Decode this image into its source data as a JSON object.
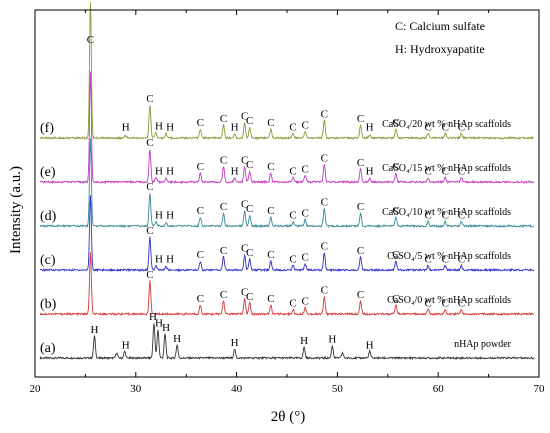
{
  "chart_data": {
    "type": "line",
    "xlabel": "2θ (°)",
    "ylabel": "Intensity (a.u.)",
    "xlim": [
      20,
      70
    ],
    "xticks": [
      20,
      30,
      40,
      50,
      60,
      70
    ],
    "legend_text": [
      "C: Calcium sulfate",
      "H: Hydroxyapatite"
    ],
    "legend_placement": "top-right",
    "grid": false,
    "top_label": "C",
    "series": [
      {
        "id": "a",
        "tag": "(a)",
        "name": "nHAp powder",
        "color": "#333333",
        "baseline": 0.0,
        "peaks": [
          [
            25.9,
            0.05
          ],
          [
            28.1,
            0.012
          ],
          [
            28.9,
            0.015
          ],
          [
            31.8,
            0.08
          ],
          [
            32.2,
            0.065
          ],
          [
            32.9,
            0.055
          ],
          [
            34.1,
            0.03
          ],
          [
            39.8,
            0.02
          ],
          [
            46.7,
            0.025
          ],
          [
            49.5,
            0.028
          ],
          [
            50.5,
            0.012
          ],
          [
            53.2,
            0.015
          ]
        ],
        "labels": [
          {
            "t": "H",
            "x": 25.9
          },
          {
            "t": "H",
            "x": 29.0
          },
          {
            "t": "H",
            "x": 31.7
          },
          {
            "t": "H",
            "x": 32.3
          },
          {
            "t": "H",
            "x": 33.0
          },
          {
            "t": "H",
            "x": 34.1
          },
          {
            "t": "H",
            "x": 39.8
          },
          {
            "t": "H",
            "x": 46.7
          },
          {
            "t": "H",
            "x": 49.5
          },
          {
            "t": "H",
            "x": 53.2
          }
        ]
      },
      {
        "id": "b",
        "tag": "(b)",
        "name": "CaSO₄/0 wt % nHAp scaffolds",
        "color": "#d43a3a",
        "baseline": 0.1,
        "peaks": [
          [
            25.5,
            0.14
          ],
          [
            31.4,
            0.075
          ],
          [
            36.4,
            0.02
          ],
          [
            38.7,
            0.03
          ],
          [
            40.8,
            0.035
          ],
          [
            41.3,
            0.025
          ],
          [
            43.4,
            0.02
          ],
          [
            45.6,
            0.01
          ],
          [
            46.8,
            0.015
          ],
          [
            48.7,
            0.04
          ],
          [
            52.3,
            0.03
          ],
          [
            55.8,
            0.02
          ],
          [
            59.0,
            0.01
          ],
          [
            60.7,
            0.01
          ],
          [
            62.3,
            0.01
          ]
        ],
        "labels": [
          {
            "t": "C",
            "x": 31.4
          },
          {
            "t": "C",
            "x": 36.4
          },
          {
            "t": "C",
            "x": 38.7
          },
          {
            "t": "C",
            "x": 40.8
          },
          {
            "t": "C",
            "x": 41.3
          },
          {
            "t": "C",
            "x": 43.4
          },
          {
            "t": "C",
            "x": 45.6
          },
          {
            "t": "C",
            "x": 46.8
          },
          {
            "t": "C",
            "x": 48.7
          },
          {
            "t": "C",
            "x": 52.3
          },
          {
            "t": "C",
            "x": 55.8
          },
          {
            "t": "C",
            "x": 59.0
          },
          {
            "t": "C",
            "x": 60.7
          },
          {
            "t": "C",
            "x": 62.3
          }
        ]
      },
      {
        "id": "c",
        "tag": "(c)",
        "name": "CaSO₄/5 wt % nHAp scaffolds",
        "color": "#3030c8",
        "baseline": 0.2,
        "peaks": [
          [
            25.5,
            0.17
          ],
          [
            31.4,
            0.075
          ],
          [
            32.0,
            0.01
          ],
          [
            33.0,
            0.008
          ],
          [
            36.4,
            0.02
          ],
          [
            38.7,
            0.03
          ],
          [
            40.8,
            0.035
          ],
          [
            41.3,
            0.025
          ],
          [
            43.4,
            0.02
          ],
          [
            45.6,
            0.01
          ],
          [
            46.8,
            0.015
          ],
          [
            48.7,
            0.04
          ],
          [
            52.3,
            0.03
          ],
          [
            55.8,
            0.02
          ],
          [
            59.0,
            0.01
          ],
          [
            60.7,
            0.01
          ],
          [
            62.3,
            0.01
          ]
        ],
        "labels": [
          {
            "t": "C",
            "x": 31.4
          },
          {
            "t": "H",
            "x": 32.3
          },
          {
            "t": "H",
            "x": 33.4
          },
          {
            "t": "C",
            "x": 36.4
          },
          {
            "t": "C",
            "x": 38.7
          },
          {
            "t": "C",
            "x": 40.8
          },
          {
            "t": "C",
            "x": 41.3
          },
          {
            "t": "C",
            "x": 43.4
          },
          {
            "t": "C",
            "x": 45.6
          },
          {
            "t": "C",
            "x": 46.8
          },
          {
            "t": "C",
            "x": 48.7
          },
          {
            "t": "C",
            "x": 52.3
          },
          {
            "t": "C",
            "x": 55.8
          },
          {
            "t": "C",
            "x": 59.0
          },
          {
            "t": "C",
            "x": 60.7
          },
          {
            "t": "C",
            "x": 62.3
          }
        ]
      },
      {
        "id": "d",
        "tag": "(d)",
        "name": "CaSO₄/10 wt % nHAp scaffolds",
        "color": "#3a8a9a",
        "baseline": 0.3,
        "peaks": [
          [
            25.5,
            0.2
          ],
          [
            31.4,
            0.075
          ],
          [
            32.0,
            0.01
          ],
          [
            33.0,
            0.008
          ],
          [
            36.4,
            0.02
          ],
          [
            38.7,
            0.03
          ],
          [
            40.8,
            0.035
          ],
          [
            41.3,
            0.025
          ],
          [
            43.4,
            0.02
          ],
          [
            45.6,
            0.01
          ],
          [
            46.8,
            0.015
          ],
          [
            48.7,
            0.04
          ],
          [
            52.3,
            0.03
          ],
          [
            55.8,
            0.02
          ],
          [
            59.0,
            0.01
          ],
          [
            60.7,
            0.01
          ],
          [
            62.3,
            0.01
          ]
        ],
        "labels": [
          {
            "t": "C",
            "x": 31.4
          },
          {
            "t": "H",
            "x": 32.3
          },
          {
            "t": "H",
            "x": 33.4
          },
          {
            "t": "C",
            "x": 36.4
          },
          {
            "t": "C",
            "x": 38.7
          },
          {
            "t": "C",
            "x": 40.8
          },
          {
            "t": "C",
            "x": 41.3
          },
          {
            "t": "C",
            "x": 43.4
          },
          {
            "t": "C",
            "x": 45.6
          },
          {
            "t": "C",
            "x": 46.8
          },
          {
            "t": "C",
            "x": 48.7
          },
          {
            "t": "C",
            "x": 52.3
          },
          {
            "t": "C",
            "x": 55.8
          },
          {
            "t": "C",
            "x": 59.0
          },
          {
            "t": "C",
            "x": 60.7
          },
          {
            "t": "C",
            "x": 62.3
          }
        ]
      },
      {
        "id": "e",
        "tag": "(e)",
        "name": "CaSO₄/15 wt % nHAp scaffolds",
        "color": "#c03cc0",
        "baseline": 0.4,
        "peaks": [
          [
            25.5,
            0.25
          ],
          [
            31.4,
            0.075
          ],
          [
            32.0,
            0.01
          ],
          [
            33.0,
            0.008
          ],
          [
            36.4,
            0.02
          ],
          [
            38.7,
            0.035
          ],
          [
            39.8,
            0.008
          ],
          [
            40.8,
            0.035
          ],
          [
            41.3,
            0.025
          ],
          [
            43.4,
            0.02
          ],
          [
            45.6,
            0.01
          ],
          [
            46.8,
            0.015
          ],
          [
            48.7,
            0.04
          ],
          [
            52.3,
            0.03
          ],
          [
            53.2,
            0.008
          ],
          [
            55.8,
            0.02
          ],
          [
            59.0,
            0.01
          ],
          [
            60.7,
            0.01
          ],
          [
            62.3,
            0.01
          ]
        ],
        "labels": [
          {
            "t": "C",
            "x": 31.4
          },
          {
            "t": "H",
            "x": 32.3
          },
          {
            "t": "H",
            "x": 33.4
          },
          {
            "t": "C",
            "x": 36.4
          },
          {
            "t": "C",
            "x": 38.7
          },
          {
            "t": "H",
            "x": 39.8
          },
          {
            "t": "C",
            "x": 40.8
          },
          {
            "t": "C",
            "x": 41.3
          },
          {
            "t": "C",
            "x": 43.4
          },
          {
            "t": "C",
            "x": 45.6
          },
          {
            "t": "C",
            "x": 46.8
          },
          {
            "t": "C",
            "x": 48.7
          },
          {
            "t": "C",
            "x": 52.3
          },
          {
            "t": "H",
            "x": 53.2
          },
          {
            "t": "C",
            "x": 55.8
          },
          {
            "t": "C",
            "x": 59.0
          },
          {
            "t": "C",
            "x": 60.7
          },
          {
            "t": "C",
            "x": 62.3
          }
        ]
      },
      {
        "id": "f",
        "tag": "(f)",
        "name": "CaSO₄/20 wt % nHAp scaffolds",
        "color": "#8a9a3a",
        "baseline": 0.5,
        "peaks": [
          [
            25.5,
            0.31
          ],
          [
            29.0,
            0.005
          ],
          [
            31.4,
            0.075
          ],
          [
            32.0,
            0.012
          ],
          [
            33.0,
            0.01
          ],
          [
            36.4,
            0.02
          ],
          [
            38.7,
            0.03
          ],
          [
            39.8,
            0.008
          ],
          [
            40.8,
            0.035
          ],
          [
            41.3,
            0.025
          ],
          [
            43.4,
            0.02
          ],
          [
            45.6,
            0.01
          ],
          [
            46.8,
            0.015
          ],
          [
            48.7,
            0.04
          ],
          [
            52.3,
            0.03
          ],
          [
            53.2,
            0.008
          ],
          [
            55.8,
            0.02
          ],
          [
            59.0,
            0.01
          ],
          [
            60.7,
            0.01
          ],
          [
            62.3,
            0.01
          ]
        ],
        "labels": [
          {
            "t": "H",
            "x": 29.0
          },
          {
            "t": "C",
            "x": 31.4
          },
          {
            "t": "H",
            "x": 32.3
          },
          {
            "t": "H",
            "x": 33.4
          },
          {
            "t": "C",
            "x": 36.4
          },
          {
            "t": "C",
            "x": 38.7
          },
          {
            "t": "H",
            "x": 39.8
          },
          {
            "t": "C",
            "x": 40.8
          },
          {
            "t": "C",
            "x": 41.3
          },
          {
            "t": "C",
            "x": 43.4
          },
          {
            "t": "C",
            "x": 45.6
          },
          {
            "t": "C",
            "x": 46.8
          },
          {
            "t": "C",
            "x": 48.7
          },
          {
            "t": "C",
            "x": 52.3
          },
          {
            "t": "H",
            "x": 53.2
          },
          {
            "t": "C",
            "x": 55.8
          },
          {
            "t": "C",
            "x": 59.0
          },
          {
            "t": "C",
            "x": 60.7
          },
          {
            "t": "C",
            "x": 62.3
          }
        ]
      }
    ]
  }
}
